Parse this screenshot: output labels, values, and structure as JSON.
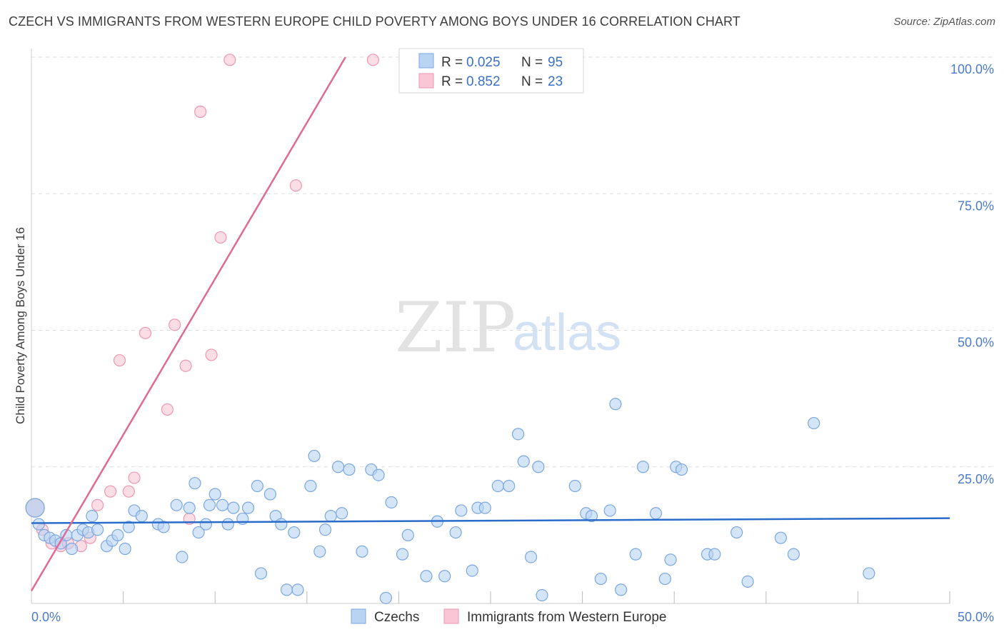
{
  "header": {
    "title": "CZECH VS IMMIGRANTS FROM WESTERN EUROPE CHILD POVERTY AMONG BOYS UNDER 16 CORRELATION CHART",
    "source": "Source: ZipAtlas.com"
  },
  "watermark": {
    "zip": "ZIP",
    "atlas": "atlas"
  },
  "colors": {
    "czech_fill": "#b9d3f3",
    "czech_stroke": "#7ba7e0",
    "czech_line": "#2a6cc9",
    "imm_fill": "#f8c6d5",
    "imm_stroke": "#ee97b3",
    "imm_line": "#e06a94",
    "grid": "#dddddd",
    "tick_text": "#4a7ac9"
  },
  "chart_data": {
    "type": "scatter",
    "title": "CZECH VS IMMIGRANTS FROM WESTERN EUROPE CHILD POVERTY AMONG BOYS UNDER 16 CORRELATION CHART",
    "xlabel": "",
    "ylabel": "Child Poverty Among Boys Under 16",
    "xlim": [
      0,
      50
    ],
    "ylim": [
      0,
      100
    ],
    "x_tick_labels": [
      "0.0%",
      "50.0%"
    ],
    "y_ticks": [
      {
        "value": 100,
        "label": "100.0%"
      },
      {
        "value": 75,
        "label": "75.0%"
      },
      {
        "value": 50,
        "label": "50.0%"
      },
      {
        "value": 25,
        "label": "25.0%"
      }
    ],
    "grid": "horizontal dashed",
    "legend": {
      "placement": "top-center",
      "entries": [
        {
          "r_label": "R =",
          "r_value": "0.025",
          "n_label": "N =",
          "n_value": "95"
        },
        {
          "r_label": "R =",
          "r_value": "0.852",
          "n_label": "N =",
          "n_value": "23"
        }
      ]
    },
    "bottom_legend": [
      "Czechs",
      "Immigrants from Western Europe"
    ],
    "series": [
      {
        "name": "Czechs",
        "trend": {
          "x0": 0,
          "y0": 14.7,
          "x1": 50,
          "y1": 15.6
        },
        "points": [
          [
            0.2,
            17.5
          ],
          [
            0.4,
            14.5
          ],
          [
            0.7,
            12.5
          ],
          [
            1.0,
            12.0
          ],
          [
            1.3,
            11.5
          ],
          [
            1.6,
            11.0
          ],
          [
            1.9,
            12.5
          ],
          [
            2.2,
            10.0
          ],
          [
            2.5,
            12.5
          ],
          [
            2.8,
            13.5
          ],
          [
            3.1,
            13.0
          ],
          [
            3.3,
            16.0
          ],
          [
            3.6,
            13.5
          ],
          [
            4.1,
            10.5
          ],
          [
            4.4,
            11.5
          ],
          [
            4.7,
            12.5
          ],
          [
            5.1,
            10.0
          ],
          [
            5.3,
            14.0
          ],
          [
            5.6,
            17.0
          ],
          [
            6.0,
            16.0
          ],
          [
            6.9,
            14.5
          ],
          [
            7.2,
            14.0
          ],
          [
            7.9,
            18.0
          ],
          [
            8.2,
            8.5
          ],
          [
            8.6,
            17.5
          ],
          [
            8.9,
            22.0
          ],
          [
            9.1,
            13.0
          ],
          [
            9.5,
            14.5
          ],
          [
            9.7,
            18.0
          ],
          [
            10.0,
            20.0
          ],
          [
            10.4,
            18.0
          ],
          [
            10.7,
            14.5
          ],
          [
            11.0,
            17.5
          ],
          [
            11.5,
            15.5
          ],
          [
            11.8,
            17.5
          ],
          [
            12.3,
            21.5
          ],
          [
            12.5,
            5.5
          ],
          [
            13.0,
            20.0
          ],
          [
            13.3,
            16.0
          ],
          [
            13.6,
            14.5
          ],
          [
            13.9,
            2.5
          ],
          [
            14.3,
            13.0
          ],
          [
            14.5,
            2.5
          ],
          [
            15.2,
            21.5
          ],
          [
            15.4,
            27.0
          ],
          [
            15.7,
            9.5
          ],
          [
            16.0,
            13.5
          ],
          [
            16.3,
            16.0
          ],
          [
            16.7,
            25.0
          ],
          [
            16.9,
            16.5
          ],
          [
            17.3,
            24.5
          ],
          [
            18.0,
            9.5
          ],
          [
            18.5,
            24.5
          ],
          [
            18.9,
            23.5
          ],
          [
            19.3,
            1.0
          ],
          [
            19.6,
            18.5
          ],
          [
            20.2,
            9.0
          ],
          [
            20.5,
            12.5
          ],
          [
            21.5,
            5.0
          ],
          [
            22.1,
            15.0
          ],
          [
            22.5,
            5.0
          ],
          [
            23.1,
            13.0
          ],
          [
            23.4,
            17.0
          ],
          [
            24.0,
            6.0
          ],
          [
            24.3,
            17.5
          ],
          [
            24.7,
            17.5
          ],
          [
            25.4,
            21.5
          ],
          [
            26.0,
            21.5
          ],
          [
            26.5,
            31.0
          ],
          [
            26.8,
            26.0
          ],
          [
            27.2,
            8.5
          ],
          [
            27.6,
            25.0
          ],
          [
            27.8,
            1.5
          ],
          [
            29.6,
            21.5
          ],
          [
            30.2,
            16.5
          ],
          [
            30.5,
            16.0
          ],
          [
            31.0,
            4.5
          ],
          [
            31.5,
            17.0
          ],
          [
            31.8,
            36.5
          ],
          [
            32.1,
            2.5
          ],
          [
            32.9,
            9.0
          ],
          [
            33.3,
            25.0
          ],
          [
            34.0,
            16.5
          ],
          [
            34.5,
            4.5
          ],
          [
            34.8,
            8.0
          ],
          [
            35.1,
            25.0
          ],
          [
            35.4,
            24.5
          ],
          [
            36.8,
            9.0
          ],
          [
            37.2,
            9.0
          ],
          [
            38.4,
            13.0
          ],
          [
            39.0,
            4.0
          ],
          [
            40.8,
            12.0
          ],
          [
            41.5,
            9.0
          ],
          [
            42.6,
            33.0
          ],
          [
            45.6,
            5.5
          ]
        ]
      },
      {
        "name": "Immigrants from Western Europe",
        "trend": {
          "x0": 0,
          "y0": 2.3,
          "x1": 17.1,
          "y1": 100
        },
        "points": [
          [
            0.2,
            17.5
          ],
          [
            0.6,
            13.5
          ],
          [
            1.1,
            11.0
          ],
          [
            1.6,
            10.5
          ],
          [
            2.0,
            11.0
          ],
          [
            2.7,
            10.5
          ],
          [
            3.2,
            12.0
          ],
          [
            3.6,
            18.0
          ],
          [
            4.3,
            20.5
          ],
          [
            4.8,
            44.5
          ],
          [
            5.3,
            20.5
          ],
          [
            5.6,
            23.0
          ],
          [
            6.2,
            49.5
          ],
          [
            7.4,
            35.5
          ],
          [
            7.8,
            51.0
          ],
          [
            8.4,
            43.5
          ],
          [
            8.6,
            15.5
          ],
          [
            9.2,
            90.0
          ],
          [
            9.8,
            45.5
          ],
          [
            10.3,
            67.0
          ],
          [
            10.8,
            99.5
          ],
          [
            14.4,
            76.5
          ],
          [
            18.6,
            99.5
          ]
        ]
      }
    ]
  }
}
